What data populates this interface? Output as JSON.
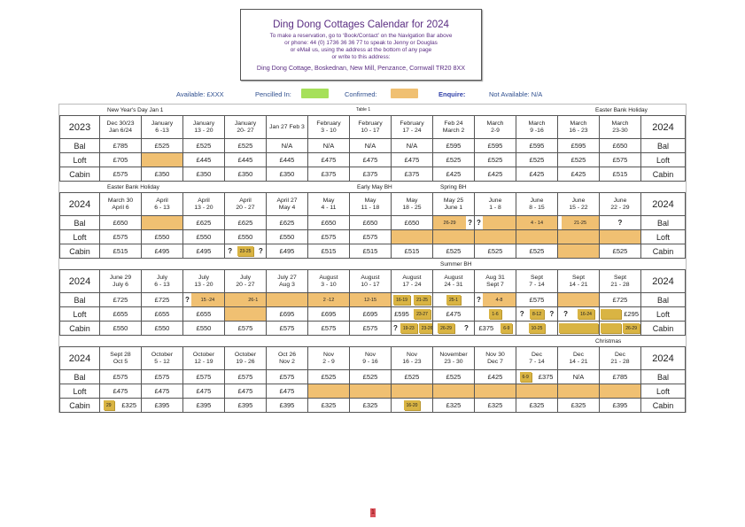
{
  "header": {
    "title": "Ding Dong Cottages Calendar for 2024",
    "lines": [
      "To make a reservation, go to ‘Book/Contact’ on the Navigation Bar above",
      "or phone: 44 (0) 1736 36 36 77  to speak to Jenny or Douglas",
      "or eMail us, using the address at the bottom of any page",
      "or write to this address:"
    ],
    "address": "Ding Dong Cottage, Boskednan, New Mill, Penzance, Cornwall  TR20 8XX"
  },
  "legend": {
    "available": "Available:  £XXX",
    "pencilled": "Pencilled In:",
    "confirmed": "Confirmed:",
    "enquire": "Enquire:",
    "not_available": "Not Available:  N/A",
    "colors": {
      "pencilled": "#a6e05a",
      "confirmed": "#f0c072",
      "booked": "#d9b443",
      "enquire": "#2f3fa8"
    }
  },
  "table_label": "Table 1",
  "page_number": "1",
  "sections": [
    {
      "year_left": "2023",
      "year_right": "2024",
      "notes": [
        {
          "text": "New Year's Day Jan 1",
          "col": 0
        },
        {
          "text": "Easter Bank Holiday",
          "col": 12
        }
      ],
      "dates": [
        "Dec 30/23\nJan 6/24",
        "January\n6 -13",
        "January\n13 - 20",
        "January\n20- 27",
        "Jan 27 Feb 3",
        "February\n3 - 10",
        "February\n10 - 17",
        "February\n17 - 24",
        "Feb 24\nMarch 2",
        "March\n2-9",
        "March\n9 -16",
        "March\n16 - 23",
        "March\n23-30"
      ],
      "rows": [
        {
          "label": "Bal",
          "cells": [
            "£785",
            "£525",
            "£525",
            "£525",
            "N/A",
            "N/A",
            "N/A",
            "N/A",
            "£595",
            "£595",
            "£595",
            "£595",
            "£650"
          ]
        },
        {
          "label": "Loft",
          "cells": [
            "£705",
            [
              [
                "",
                "c"
              ]
            ],
            "£445",
            "£445",
            "£445",
            "£475",
            "£475",
            "£475",
            "£525",
            "£525",
            "£525",
            "£525",
            "£575"
          ]
        },
        {
          "label": "Cabin",
          "cells": [
            "£575",
            "£350",
            "£350",
            "£350",
            "£350",
            "£375",
            "£375",
            "£375",
            "£425",
            "£425",
            "£425",
            "£425",
            "£515"
          ]
        }
      ]
    },
    {
      "year_left": "2024",
      "year_right": "2024",
      "notes": [
        {
          "text": "Easter Bank Holiday",
          "col": 0
        },
        {
          "text": "Early May BH",
          "col": 6
        },
        {
          "text": "Spring BH",
          "col": 8
        }
      ],
      "dates": [
        "March 30\nApril 6",
        "April\n6 - 13",
        "April\n13 - 20",
        "April\n20 - 27",
        "April 27\nMay 4",
        "May\n4 - 11",
        "May\n11 - 18",
        "May\n18 - 25",
        "May 25\nJune 1",
        "June\n1 - 8",
        "June\n8 - 15",
        "June\n15 - 22",
        "June\n22 - 29"
      ],
      "rows": [
        {
          "label": "Bal",
          "cells": [
            "£650",
            [
              [
                "",
                "c"
              ]
            ],
            "£625",
            "£625",
            "£625",
            "£650",
            "£650",
            "£650",
            [
              [
                "26-29",
                "c"
              ],
              [
                "?",
                "q"
              ]
            ],
            [
              [
                "?",
                "q"
              ],
              [
                "",
                "c"
              ]
            ],
            [
              [
                "4 - 14",
                "c"
              ]
            ],
            [
              [
                "",
                ""
              ],
              [
                "21-25",
                "c"
              ]
            ],
            [
              [
                "?",
                "q"
              ]
            ]
          ]
        },
        {
          "label": "Loft",
          "cells": [
            "£575",
            "£550",
            "£550",
            "£550",
            "£550",
            "£575",
            "£575",
            [
              [
                "",
                "c"
              ]
            ],
            [
              [
                "",
                "c"
              ]
            ],
            [
              [
                "",
                "c"
              ]
            ],
            [
              [
                "",
                "c"
              ]
            ],
            [
              [
                "",
                "c"
              ]
            ],
            [
              [
                "",
                "c"
              ]
            ]
          ]
        },
        {
          "label": "Cabin",
          "cells": [
            "£515",
            "£495",
            "£495",
            [
              [
                "?",
                "q"
              ],
              [
                "23-25",
                "g"
              ],
              [
                "?",
                "q"
              ]
            ],
            "£495",
            "£515",
            "£515",
            "£515",
            "£525",
            "£525",
            "£525",
            [
              [
                "",
                "c"
              ]
            ],
            "£525"
          ]
        }
      ]
    },
    {
      "year_left": "2024",
      "year_right": "2024",
      "notes": [
        {
          "text": "Summer BH",
          "col": 8
        }
      ],
      "dates": [
        "June 29\nJuly 6",
        "July\n6 - 13",
        "July\n13 - 20",
        "July\n20 - 27",
        "July 27\nAug 3",
        "August\n3 - 10",
        "August\n10 - 17",
        "August\n17 - 24",
        "August\n24 - 31",
        "Aug 31\nSept 7",
        "Sept\n7 - 14",
        "Sept\n14 - 21",
        "Sept\n21 - 28"
      ],
      "rows": [
        {
          "label": "Bal",
          "cells": [
            "£725",
            "£725",
            [
              [
                "?",
                "q"
              ],
              [
                "15 -24",
                "c"
              ]
            ],
            [
              [
                "",
                "c"
              ],
              [
                "26-1",
                "c"
              ]
            ],
            [
              [
                "",
                "c"
              ]
            ],
            [
              [
                "2 -12",
                "c"
              ]
            ],
            [
              [
                "12-15",
                "c"
              ]
            ],
            [
              [
                "16-19",
                "g"
              ],
              [
                "21-25",
                "g"
              ]
            ],
            [
              [
                "25-1",
                "g"
              ]
            ],
            [
              [
                "?",
                "q"
              ],
              [
                "4-8",
                "c"
              ]
            ],
            "£575",
            [
              [
                "",
                "c"
              ]
            ],
            "£725"
          ]
        },
        {
          "label": "Loft",
          "cells": [
            "£655",
            "£655",
            "£655",
            [
              [
                "",
                "c"
              ]
            ],
            "£695",
            "£695",
            "£695",
            [
              [
                "£595",
                ""
              ],
              [
                "23-27",
                "g"
              ]
            ],
            "£475",
            [
              [
                "1-6",
                "g"
              ]
            ],
            [
              [
                "?",
                "q"
              ],
              [
                "8-12",
                "g"
              ],
              [
                "?",
                "q"
              ]
            ],
            [
              [
                "?",
                "q"
              ],
              [
                "16-24",
                "g"
              ]
            ],
            [
              [
                "",
                "g"
              ],
              [
                "£295",
                ""
              ]
            ]
          ]
        },
        {
          "label": "Cabin",
          "cells": [
            "£550",
            "£550",
            "£550",
            "£575",
            "£575",
            "£575",
            "£575",
            [
              [
                "?",
                "q"
              ],
              [
                "19-23",
                "g"
              ],
              [
                "23-26",
                "g"
              ]
            ],
            [
              [
                "26-29",
                "g"
              ],
              [
                "?",
                "q"
              ]
            ],
            [
              [
                "£375",
                ""
              ],
              [
                "6-9",
                "g"
              ]
            ],
            [
              [
                "10-25",
                "g"
              ]
            ],
            [
              [
                "",
                "g"
              ]
            ],
            [
              [
                "",
                "g"
              ],
              [
                "26-29",
                "g"
              ]
            ]
          ]
        }
      ]
    },
    {
      "year_left": "2024",
      "year_right": "2024",
      "notes": [
        {
          "text": "Christmas",
          "col": 12
        }
      ],
      "dates": [
        "Sept 28\nOct 5",
        "October\n5 - 12",
        "October\n12 - 19",
        "October\n19 - 26",
        "Oct 26\nNov 2",
        "Nov\n2 - 9",
        "Nov\n9 - 16",
        "Nov\n16 - 23",
        "November\n23 - 30",
        "Nov 30\nDec 7",
        "Dec\n7 - 14",
        "Dec\n14 - 21",
        "Dec\n21 - 28"
      ],
      "rows": [
        {
          "label": "Bal",
          "cells": [
            "£575",
            "£575",
            "£575",
            "£575",
            "£575",
            "£525",
            "£525",
            "£525",
            "£525",
            "£425",
            [
              [
                "6-9",
                "g"
              ],
              [
                "£375",
                ""
              ]
            ],
            "N/A",
            "£785"
          ]
        },
        {
          "label": "Loft",
          "cells": [
            "£475",
            "£475",
            "£475",
            "£475",
            "£475",
            [
              [
                "",
                "c"
              ]
            ],
            [
              [
                "",
                "c"
              ]
            ],
            [
              [
                "",
                "c"
              ]
            ],
            [
              [
                "",
                "c"
              ]
            ],
            [
              [
                "",
                "c"
              ]
            ],
            [
              [
                "",
                "c"
              ]
            ],
            [
              [
                "",
                "c"
              ]
            ],
            [
              [
                "",
                "c"
              ]
            ]
          ]
        },
        {
          "label": "Cabin",
          "cells": [
            [
              [
                "29",
                "g"
              ],
              [
                "£325",
                ""
              ]
            ],
            "£395",
            "£395",
            "£395",
            "£395",
            "£325",
            "£325",
            [
              [
                "16-20",
                "g"
              ]
            ],
            "£325",
            "£325",
            "£325",
            "£325",
            "£395"
          ]
        }
      ]
    }
  ]
}
